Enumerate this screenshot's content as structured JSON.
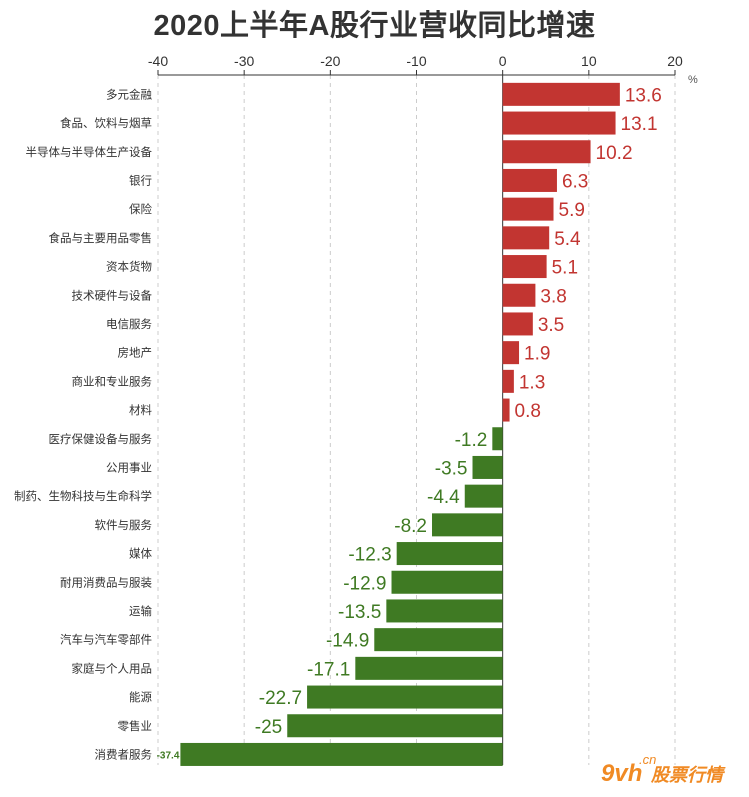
{
  "chart_data": {
    "type": "bar",
    "orientation": "horizontal",
    "title": "2020上半年A股行业营收同比增速",
    "unit": "%",
    "categories": [
      "多元金融",
      "食品、饮料与烟草",
      "半导体与半导体生产设备",
      "银行",
      "保险",
      "食品与主要用品零售",
      "资本货物",
      "技术硬件与设备",
      "电信服务",
      "房地产",
      "商业和专业服务",
      "材料",
      "医疗保健设备与服务",
      "公用事业",
      "制药、生物科技与生命科学",
      "软件与服务",
      "媒体",
      "耐用消费品与服装",
      "运输",
      "汽车与汽车零部件",
      "家庭与个人用品",
      "能源",
      "零售业",
      "消费者服务"
    ],
    "values": [
      13.6,
      13.1,
      10.2,
      6.3,
      5.9,
      5.4,
      5.1,
      3.8,
      3.5,
      1.9,
      1.3,
      0.8,
      -1.2,
      -3.5,
      -4.4,
      -8.2,
      -12.3,
      -12.9,
      -13.5,
      -14.9,
      -17.1,
      -22.7,
      -25,
      -37.4
    ],
    "value_labels": [
      "13.6",
      "13.1",
      "10.2",
      "6.3",
      "5.9",
      "5.4",
      "5.1",
      "3.8",
      "3.5",
      "1.9",
      "1.3",
      "0.8",
      "-1.2",
      "-3.5",
      "-4.4",
      "-8.2",
      "-12.3",
      "-12.9",
      "-13.5",
      "-14.9",
      "-17.1",
      "-22.7",
      "-25",
      "-37.4"
    ],
    "xlim": [
      -40,
      20
    ],
    "xticks": [
      -40,
      -30,
      -20,
      -10,
      0,
      10,
      20
    ],
    "xtick_labels": [
      "-40",
      "-30",
      "-20",
      "-10",
      "0",
      "10",
      "20"
    ],
    "axis_position": "top",
    "grid": "vertical dashed",
    "colors": {
      "positive": "#c23531",
      "negative": "#3f7a23"
    }
  },
  "watermark": {
    "brand": "9vh",
    "domain": ".cn",
    "text": "股票行情"
  }
}
